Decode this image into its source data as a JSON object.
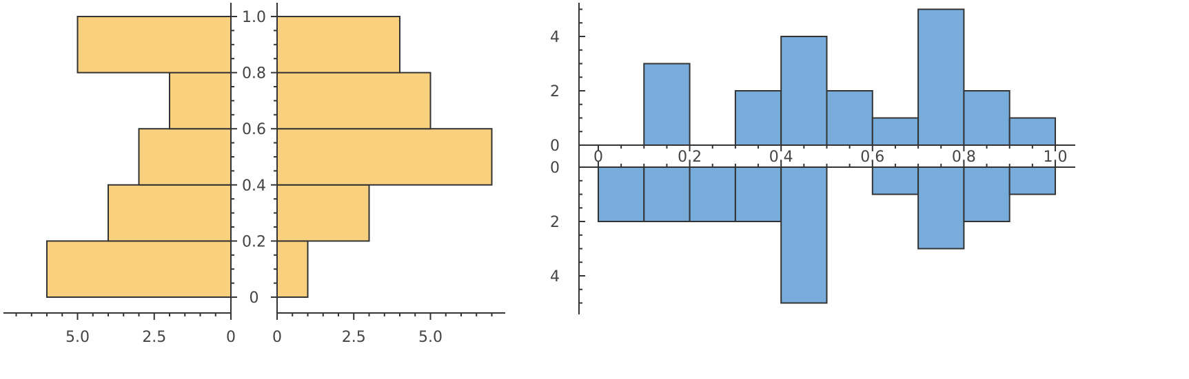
{
  "chart_data": [
    {
      "type": "bar",
      "subtype": "paired-histogram-horizontal",
      "bin_edges": [
        0,
        0.2,
        0.4,
        0.6,
        0.8,
        1.0
      ],
      "left_series": {
        "values": [
          6,
          4,
          3,
          2,
          5
        ]
      },
      "right_series": {
        "values": [
          1,
          3,
          7,
          5,
          4
        ]
      },
      "y_ticks": [
        "0",
        "0.2",
        "0.4",
        "0.6",
        "0.8",
        "1.0"
      ],
      "x_ticks_left": [
        "5.0",
        "2.5",
        "0"
      ],
      "x_ticks_right": [
        "0",
        "2.5",
        "5.0"
      ],
      "colors": {
        "fill": "#f9d07e",
        "stroke": "#333333"
      }
    },
    {
      "type": "bar",
      "subtype": "paired-histogram-vertical",
      "bin_edges": [
        0,
        0.1,
        0.2,
        0.3,
        0.4,
        0.5,
        0.6,
        0.7,
        0.8,
        0.9,
        1.0
      ],
      "top_series": {
        "values": [
          0,
          3,
          0,
          2,
          4,
          2,
          1,
          5,
          2,
          1
        ]
      },
      "bottom_series": {
        "values": [
          2,
          2,
          2,
          2,
          5,
          0,
          1,
          3,
          2,
          1
        ]
      },
      "x_ticks": [
        "0",
        "0.2",
        "0.4",
        "0.6",
        "0.8",
        "1.0"
      ],
      "y_ticks_top": [
        "0",
        "2",
        "4"
      ],
      "y_ticks_bottom": [
        "0",
        "2",
        "4"
      ],
      "colors": {
        "fill": "#78acdb",
        "stroke": "#333333"
      }
    }
  ]
}
